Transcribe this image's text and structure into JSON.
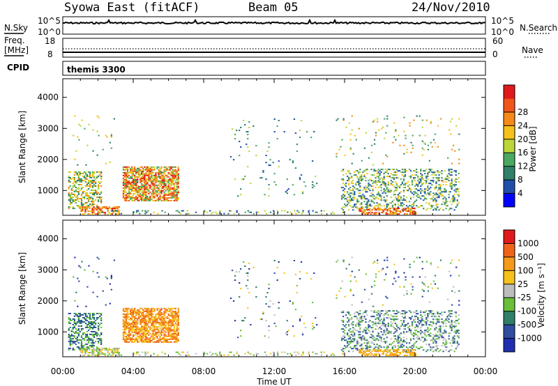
{
  "header": {
    "station": "Syowa East (fitACF)",
    "beam": "Beam 05",
    "date": "24/Nov/2010"
  },
  "noise_panel": {
    "left_label": "N.Sky",
    "right_label": "N.Search",
    "left_ticks": [
      "10^5",
      "10^0"
    ],
    "right_ticks": [
      "10^5",
      "10^0"
    ]
  },
  "freq_panel": {
    "left_label_line1": "Freq.",
    "left_label_line2": "[MHz]",
    "left_ticks": [
      "18",
      "8"
    ],
    "right_label": "Nave",
    "right_ticks": [
      "60",
      "0"
    ]
  },
  "cpid_panel": {
    "label": "CPID",
    "program": "themis 3300"
  },
  "colors": {
    "power_scale": [
      "#0000ff",
      "#1f4fa8",
      "#2f7f6a",
      "#4aa860",
      "#bcd63a",
      "#f5c21b",
      "#f58a1a",
      "#f0561a",
      "#e01a1a"
    ],
    "velocity_scale": [
      "#1f2fb0",
      "#2f4ea0",
      "#2f7f6a",
      "#68c03a",
      "#bdbdbd",
      "#f5c21b",
      "#f59a1a",
      "#f0641a",
      "#e01a1a"
    ]
  },
  "chart_data": [
    {
      "type": "heatmap",
      "panel": "power",
      "ylabel": "Slant Range [km]",
      "yticks": [
        "1000",
        "2000",
        "3000",
        "4000"
      ],
      "ylim": [
        200,
        4600
      ],
      "xlim_hours": [
        0,
        24
      ],
      "colorbar": {
        "label": "Power [dB]",
        "ticks": [
          "4",
          "8",
          "12",
          "16",
          "20",
          "24",
          "28"
        ],
        "range": [
          0,
          32
        ]
      }
    },
    {
      "type": "heatmap",
      "panel": "velocity",
      "ylabel": "Slant Range [km]",
      "yticks": [
        "1000",
        "2000",
        "3000",
        "4000"
      ],
      "ylim": [
        200,
        4600
      ],
      "xlim_hours": [
        0,
        24
      ],
      "colorbar": {
        "label": "Velocity [m s⁻¹]",
        "ticks": [
          "1000",
          "500",
          "100",
          "25",
          "-25",
          "-100",
          "-500",
          "-1000"
        ]
      }
    }
  ],
  "x_axis": {
    "ticks": [
      "00:00",
      "04:00",
      "08:00",
      "12:00",
      "16:00",
      "20:00",
      "00:00"
    ],
    "label": "Time UT"
  }
}
